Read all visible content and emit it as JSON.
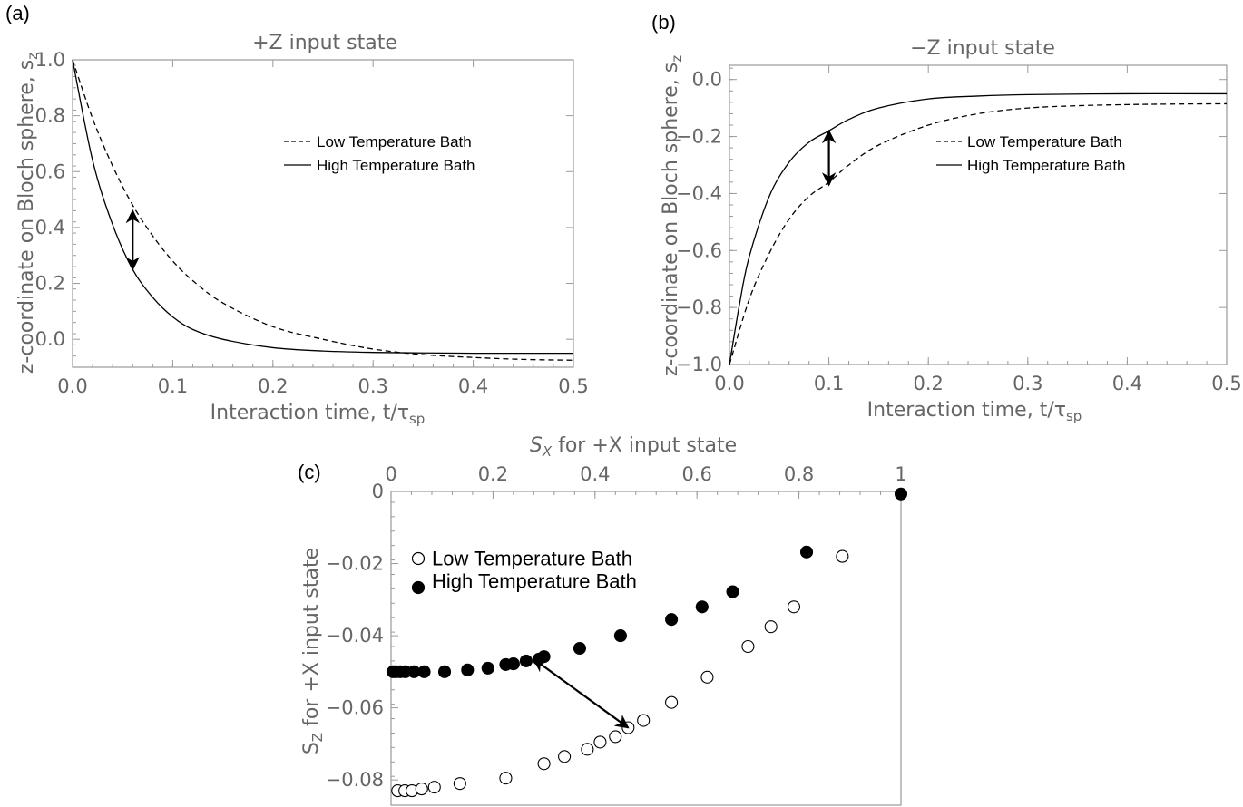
{
  "colors": {
    "curve": "#000000",
    "axis_text": "#666666",
    "frame": "#9a9a9a"
  },
  "chart_data": [
    {
      "type": "line",
      "panel_label": "(a)",
      "title": "+Z input state",
      "xlabel": "Interaction time, t/τ",
      "xlabel_sub": "sp",
      "ylabel": "z-coordinate on Bloch sphere, s",
      "ylabel_sub": "z",
      "xlim": [
        0,
        0.5
      ],
      "ylim": [
        -0.1,
        1.0
      ],
      "xticks": [
        "0.0",
        "0.1",
        "0.2",
        "0.3",
        "0.4",
        "0.5"
      ],
      "yticks": [
        "1.0",
        "0.8",
        "0.6",
        "0.4",
        "0.2",
        "0.0"
      ],
      "series": [
        {
          "name": "Low Temperature Bath",
          "style": "dashed",
          "x": [
            0,
            0.02,
            0.04,
            0.06,
            0.08,
            0.1,
            0.12,
            0.15,
            0.2,
            0.25,
            0.3,
            0.35,
            0.4,
            0.45,
            0.5
          ],
          "y": [
            1.0,
            0.79,
            0.62,
            0.48,
            0.37,
            0.28,
            0.21,
            0.13,
            0.045,
            0.0,
            -0.035,
            -0.055,
            -0.065,
            -0.072,
            -0.075
          ]
        },
        {
          "name": "High Temperature Bath",
          "style": "solid",
          "x": [
            0,
            0.02,
            0.04,
            0.06,
            0.08,
            0.1,
            0.12,
            0.15,
            0.2,
            0.25,
            0.3,
            0.35,
            0.4,
            0.45,
            0.5
          ],
          "y": [
            1.0,
            0.64,
            0.41,
            0.25,
            0.15,
            0.08,
            0.035,
            0.0,
            -0.03,
            -0.042,
            -0.047,
            -0.049,
            -0.05,
            -0.05,
            -0.05
          ]
        }
      ],
      "annotation": {
        "type": "double-arrow",
        "x": 0.06,
        "y1": 0.25,
        "y2": 0.46
      },
      "legend_position": "upper-right"
    },
    {
      "type": "line",
      "panel_label": "(b)",
      "title": "−Z input state",
      "xlabel": "Interaction time, t/τ",
      "xlabel_sub": "sp",
      "ylabel": "z-coordinate on Bloch sphere, s",
      "ylabel_sub": "z",
      "xlim": [
        0,
        0.5
      ],
      "ylim": [
        -1.0,
        0.05
      ],
      "xticks": [
        "0.0",
        "0.1",
        "0.2",
        "0.3",
        "0.4",
        "0.5"
      ],
      "yticks": [
        "0.0",
        "−0.2",
        "−0.4",
        "−0.6",
        "−0.8",
        "−1.0"
      ],
      "series": [
        {
          "name": "Low Temperature Bath",
          "style": "dashed",
          "x": [
            0,
            0.02,
            0.04,
            0.06,
            0.08,
            0.1,
            0.12,
            0.15,
            0.2,
            0.25,
            0.3,
            0.35,
            0.4,
            0.45,
            0.5
          ],
          "y": [
            -1.0,
            -0.77,
            -0.61,
            -0.49,
            -0.41,
            -0.36,
            -0.3,
            -0.23,
            -0.16,
            -0.12,
            -0.1,
            -0.092,
            -0.088,
            -0.086,
            -0.085
          ]
        },
        {
          "name": "High Temperature Bath",
          "style": "solid",
          "x": [
            0,
            0.01,
            0.02,
            0.04,
            0.06,
            0.08,
            0.1,
            0.12,
            0.15,
            0.2,
            0.25,
            0.3,
            0.4,
            0.5
          ],
          "y": [
            -1.0,
            -0.79,
            -0.62,
            -0.41,
            -0.29,
            -0.22,
            -0.18,
            -0.14,
            -0.1,
            -0.068,
            -0.058,
            -0.053,
            -0.05,
            -0.05
          ]
        }
      ],
      "annotation": {
        "type": "double-arrow",
        "x": 0.1,
        "y1": -0.18,
        "y2": -0.37
      },
      "legend_position": "right"
    },
    {
      "type": "scatter",
      "panel_label": "(c)",
      "xlabel": "S",
      "xlabel_sub": "X",
      "xlabel_rest": " for +X input state",
      "ylabel": "S",
      "ylabel_sub": "Z",
      "ylabel_rest": " for +X input state",
      "x_axis_position": "top",
      "xlim": [
        0,
        1
      ],
      "ylim": [
        -0.087,
        0
      ],
      "xticks": [
        "0",
        "0.2",
        "0.4",
        "0.6",
        "0.8",
        "1"
      ],
      "yticks": [
        "0",
        "−0.02",
        "−0.04",
        "−0.06",
        "−0.08"
      ],
      "series": [
        {
          "name": "Low Temperature Bath",
          "marker": "open-circle",
          "x": [
            0.013,
            0.027,
            0.041,
            0.06,
            0.085,
            0.135,
            0.225,
            0.3,
            0.34,
            0.385,
            0.41,
            0.44,
            0.465,
            0.495,
            0.55,
            0.62,
            0.7,
            0.745,
            0.79,
            0.885
          ],
          "y": [
            -0.083,
            -0.083,
            -0.083,
            -0.0825,
            -0.082,
            -0.081,
            -0.0795,
            -0.0755,
            -0.0735,
            -0.0715,
            -0.0695,
            -0.068,
            -0.0655,
            -0.0635,
            -0.0585,
            -0.0515,
            -0.043,
            -0.0375,
            -0.032,
            -0.018
          ]
        },
        {
          "name": "High Temperature Bath",
          "marker": "filled-circle",
          "x": [
            0.004,
            0.01,
            0.018,
            0.028,
            0.045,
            0.065,
            0.105,
            0.15,
            0.19,
            0.225,
            0.24,
            0.265,
            0.29,
            0.3,
            0.37,
            0.45,
            0.55,
            0.61,
            0.67,
            0.815,
            1.0
          ],
          "y": [
            -0.05,
            -0.05,
            -0.05,
            -0.05,
            -0.05,
            -0.05,
            -0.05,
            -0.0495,
            -0.049,
            -0.048,
            -0.0478,
            -0.047,
            -0.0465,
            -0.0458,
            -0.0435,
            -0.04,
            -0.0355,
            -0.032,
            -0.0278,
            -0.0168,
            -0.0007
          ]
        }
      ],
      "annotation": {
        "type": "double-arrow",
        "x1": 0.28,
        "y1": -0.0465,
        "x2": 0.465,
        "y2": -0.0655
      },
      "legend_position": "upper-left"
    }
  ]
}
